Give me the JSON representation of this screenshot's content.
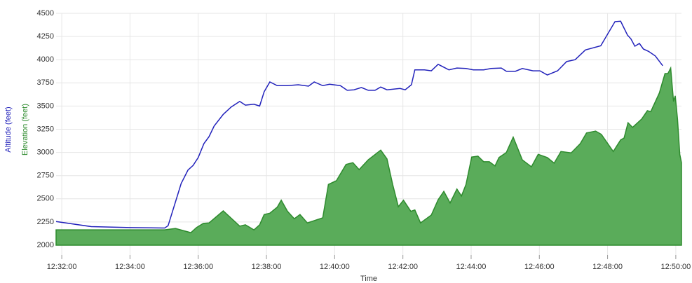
{
  "chart_data": {
    "type": "line-area",
    "x_label": "Time",
    "y_labels": [
      {
        "text": "Altitude (feet)",
        "color": "#2222bb"
      },
      {
        "text": "Elevation (feet)",
        "color": "#2e8b2e"
      }
    ],
    "xlim": [
      "12:31:50",
      "12:50:10"
    ],
    "xticks": [
      "12:32:00",
      "12:34:00",
      "12:36:00",
      "12:38:00",
      "12:40:00",
      "12:42:00",
      "12:44:00",
      "12:46:00",
      "12:48:00",
      "12:50:00"
    ],
    "ylim": [
      2000,
      4500
    ],
    "yticks": [
      2000,
      2250,
      2500,
      2750,
      3000,
      3250,
      3500,
      3750,
      4000,
      4250,
      4500
    ],
    "grid": true,
    "series": [
      {
        "name": "Altitude",
        "kind": "line",
        "color": "#2222bb",
        "x": [
          "12:31:50",
          "12:32:52",
          "12:34:00",
          "12:35:01",
          "12:35:07",
          "12:35:30",
          "12:35:42",
          "12:35:51",
          "12:36:00",
          "12:36:10",
          "12:36:19",
          "12:36:28",
          "12:36:44",
          "12:36:58",
          "12:37:13",
          "12:37:23",
          "12:37:38",
          "12:37:48",
          "12:37:56",
          "12:38:06",
          "12:38:19",
          "12:38:37",
          "12:38:56",
          "12:39:14",
          "12:39:24",
          "12:39:39",
          "12:39:51",
          "12:40:10",
          "12:40:22",
          "12:40:34",
          "12:40:47",
          "12:40:59",
          "12:41:11",
          "12:41:21",
          "12:41:32",
          "12:41:55",
          "12:42:04",
          "12:42:15",
          "12:42:21",
          "12:42:38",
          "12:42:50",
          "12:43:02",
          "12:43:21",
          "12:43:35",
          "12:43:51",
          "12:44:04",
          "12:44:22",
          "12:44:35",
          "12:44:53",
          "12:45:02",
          "12:45:18",
          "12:45:30",
          "12:45:49",
          "12:46:01",
          "12:46:14",
          "12:46:32",
          "12:46:48",
          "12:47:03",
          "12:47:21",
          "12:47:48",
          "12:48:13",
          "12:48:23",
          "12:48:35",
          "12:48:41",
          "12:48:48",
          "12:48:56",
          "12:49:03",
          "12:49:12",
          "12:49:24",
          "12:49:37"
        ],
        "values": [
          2255,
          2200,
          2190,
          2185,
          2210,
          2665,
          2810,
          2860,
          2945,
          3095,
          3170,
          3285,
          3410,
          3490,
          3550,
          3510,
          3520,
          3500,
          3655,
          3760,
          3720,
          3720,
          3730,
          3715,
          3760,
          3720,
          3735,
          3720,
          3670,
          3675,
          3700,
          3670,
          3670,
          3705,
          3675,
          3690,
          3675,
          3730,
          3890,
          3890,
          3880,
          3950,
          3890,
          3910,
          3905,
          3890,
          3890,
          3905,
          3910,
          3875,
          3875,
          3905,
          3880,
          3880,
          3835,
          3880,
          3980,
          4000,
          4105,
          4150,
          4410,
          4415,
          4265,
          4225,
          4145,
          4175,
          4115,
          4090,
          4040,
          3935
        ]
      },
      {
        "name": "Elevation",
        "kind": "area",
        "color": "#2e8b2e",
        "fill": "#5aac5a",
        "x": [
          "12:31:50",
          "12:35:01",
          "12:35:20",
          "12:35:47",
          "12:35:57",
          "12:36:09",
          "12:36:19",
          "12:36:44",
          "12:37:13",
          "12:37:23",
          "12:37:38",
          "12:37:48",
          "12:37:56",
          "12:38:06",
          "12:38:19",
          "12:38:26",
          "12:38:37",
          "12:38:49",
          "12:38:59",
          "12:39:12",
          "12:39:39",
          "12:39:49",
          "12:40:03",
          "12:40:20",
          "12:40:32",
          "12:40:43",
          "12:40:59",
          "12:41:21",
          "12:41:32",
          "12:41:42",
          "12:41:52",
          "12:42:01",
          "12:42:14",
          "12:42:21",
          "12:42:31",
          "12:42:50",
          "12:43:02",
          "12:43:12",
          "12:43:23",
          "12:43:35",
          "12:43:43",
          "12:43:51",
          "12:44:01",
          "12:44:12",
          "12:44:22",
          "12:44:32",
          "12:44:42",
          "12:44:49",
          "12:45:02",
          "12:45:14",
          "12:45:30",
          "12:45:46",
          "12:45:58",
          "12:46:14",
          "12:46:26",
          "12:46:38",
          "12:46:56",
          "12:47:12",
          "12:47:23",
          "12:47:39",
          "12:47:49",
          "12:48:10",
          "12:48:23",
          "12:48:29",
          "12:48:36",
          "12:48:44",
          "12:49:00",
          "12:49:10",
          "12:49:16",
          "12:49:31",
          "12:49:41",
          "12:49:46",
          "12:49:51",
          "12:49:56",
          "12:49:59",
          "12:50:03",
          "12:50:07",
          "12:50:10"
        ],
        "values": [
          2165,
          2165,
          2180,
          2135,
          2190,
          2235,
          2240,
          2370,
          2205,
          2220,
          2165,
          2220,
          2330,
          2345,
          2410,
          2485,
          2365,
          2285,
          2330,
          2240,
          2295,
          2655,
          2695,
          2870,
          2890,
          2815,
          2920,
          3025,
          2930,
          2655,
          2415,
          2485,
          2365,
          2380,
          2240,
          2325,
          2490,
          2580,
          2455,
          2605,
          2530,
          2655,
          2950,
          2960,
          2900,
          2900,
          2855,
          2945,
          3000,
          3165,
          2920,
          2845,
          2980,
          2945,
          2885,
          3010,
          2995,
          3095,
          3210,
          3230,
          3195,
          3010,
          3135,
          3155,
          3320,
          3270,
          3360,
          3450,
          3440,
          3640,
          3850,
          3850,
          3910,
          3550,
          3610,
          3360,
          2980,
          2890
        ]
      }
    ]
  }
}
